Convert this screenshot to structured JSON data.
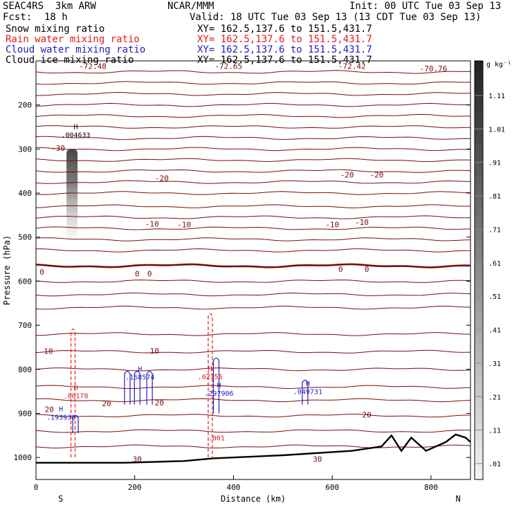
{
  "header": {
    "model": "SEAC4RS  3km ARW",
    "org": "NCAR/MMM",
    "init": "Init: 00 UTC Tue 03 Sep 13",
    "fcst_label": "Fcst:",
    "fcst_value": "18 h",
    "valid": "Valid: 18 UTC Tue 03 Sep 13 (13 CDT Tue 03 Sep 13)"
  },
  "legend": [
    {
      "label": "Snow mixing ratio",
      "xy": "XY= 162.5,137.6 to 151.5,431.7",
      "color": "#000000"
    },
    {
      "label": "Rain water mixing ratio",
      "xy": "XY= 162.5,137.6 to 151.5,431.7",
      "color": "#e31a1c"
    },
    {
      "label": "Cloud water mixing ratio",
      "xy": "XY= 162.5,137.6 to 151.5,431.7",
      "color": "#1f1fbf"
    },
    {
      "label": "Cloud ice mixing ratio",
      "xy": "XY= 162.5,137.6 to 151.5,431.7",
      "color": "#000000"
    }
  ],
  "chart_data": {
    "type": "heatmap",
    "xlabel": "Distance (km)",
    "ylabel": "Pressure (hPa)",
    "xlim": [
      0,
      880
    ],
    "ylim": [
      1050,
      100
    ],
    "xticks": [
      0,
      200,
      400,
      600,
      800
    ],
    "yticks": [
      200,
      300,
      400,
      500,
      600,
      700,
      800,
      900,
      1000
    ],
    "end_labels": {
      "left": "S",
      "right": "N"
    },
    "colorbar": {
      "unit": "g kg⁻¹",
      "ticks": [
        "1.11",
        "1.01",
        ".91",
        ".81",
        ".71",
        ".61",
        ".51",
        ".41",
        ".31",
        ".21",
        ".11",
        ".01"
      ],
      "values": [
        1.11,
        1.01,
        0.91,
        0.81,
        0.71,
        0.61,
        0.51,
        0.41,
        0.31,
        0.21,
        0.11,
        0.01
      ]
    },
    "temperature_labels": [
      {
        "text": "-72.48",
        "x": 115,
        "p": 112
      },
      {
        "text": "-72.65",
        "x": 390,
        "p": 112
      },
      {
        "text": "-72.42",
        "x": 640,
        "p": 112
      },
      {
        "text": "-70.76",
        "x": 805,
        "p": 117
      },
      {
        "text": "-30",
        "x": 45,
        "p": 298
      },
      {
        "text": "-20",
        "x": 255,
        "p": 366
      },
      {
        "text": "-20",
        "x": 630,
        "p": 358
      },
      {
        "text": "-20",
        "x": 690,
        "p": 358
      },
      {
        "text": "-10",
        "x": 235,
        "p": 470
      },
      {
        "text": "-10",
        "x": 300,
        "p": 471
      },
      {
        "text": "-10",
        "x": 600,
        "p": 471
      },
      {
        "text": "-10",
        "x": 660,
        "p": 466
      },
      {
        "text": "0",
        "x": 12,
        "p": 579
      },
      {
        "text": "0",
        "x": 205,
        "p": 583
      },
      {
        "text": "0",
        "x": 230,
        "p": 583
      },
      {
        "text": "0",
        "x": 617,
        "p": 573
      },
      {
        "text": "0",
        "x": 670,
        "p": 573
      },
      {
        "text": "10",
        "x": 25,
        "p": 759
      },
      {
        "text": "10",
        "x": 240,
        "p": 758
      },
      {
        "text": "20",
        "x": 27,
        "p": 891
      },
      {
        "text": "20",
        "x": 143,
        "p": 877
      },
      {
        "text": "20",
        "x": 250,
        "p": 876
      },
      {
        "text": "20",
        "x": 670,
        "p": 903
      },
      {
        "text": "30",
        "x": 205,
        "p": 1004
      },
      {
        "text": "30",
        "x": 570,
        "p": 1004
      }
    ],
    "maxima": [
      {
        "field": "Snow mixing ratio",
        "mark": "H",
        "value": ".004633",
        "x": 75,
        "p": 270
      },
      {
        "field": "Rain water mixing ratio",
        "mark": "H",
        "value": ".00178",
        "x": 75,
        "p": 862
      },
      {
        "field": "Rain water mixing ratio",
        "mark": "H",
        "value": ".02156",
        "x": 347,
        "p": 819
      },
      {
        "field": "Rain water mixing ratio",
        "mark": "",
        "value": ".001",
        "x": 360,
        "p": 958
      },
      {
        "field": "Cloud water mixing ratio",
        "mark": "H",
        "value": ".193938",
        "x": 45,
        "p": 911
      },
      {
        "field": "Cloud water mixing ratio",
        "mark": "H",
        "value": ".168574",
        "x": 205,
        "p": 820
      },
      {
        "field": "Cloud water mixing ratio",
        "mark": "H",
        "value": ".297906",
        "x": 365,
        "p": 857
      },
      {
        "field": "Cloud water mixing ratio",
        "mark": "H",
        "value": ".049731",
        "x": 545,
        "p": 853
      }
    ]
  }
}
